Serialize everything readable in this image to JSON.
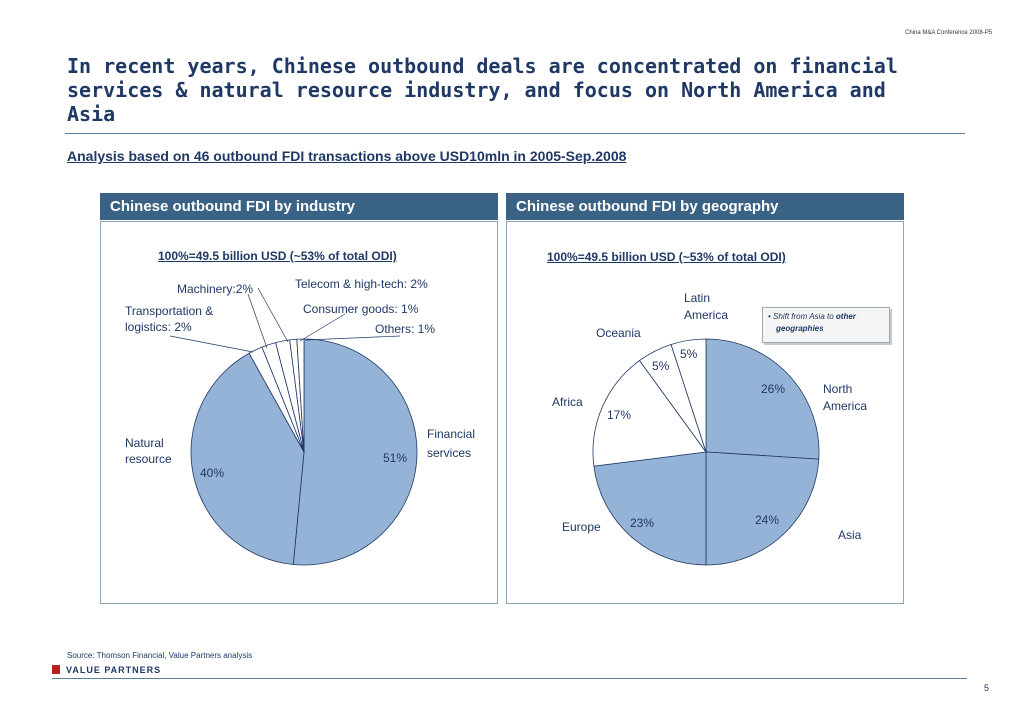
{
  "header_note": "China M&A Conference 2008-P5",
  "title": "In recent years, Chinese outbound deals are concentrated on financial services & natural resource industry, and focus on North America and Asia",
  "subtitle": "Analysis based on 46 outbound FDI transactions above USD10mln in 2005-Sep.2008",
  "panels": {
    "industry": {
      "header": "Chinese outbound FDI by industry",
      "subtitle": "100%=49.5 billion USD (~53% of total ODI)",
      "labels": {
        "machinery": "Machinery:2%",
        "telecom": "Telecom & high-tech: 2%",
        "transport_line1": "Transportation &",
        "transport_line2": "logistics: 2%",
        "consumer": "Consumer goods: 1%",
        "others": "Others: 1%",
        "natural_line1": "Natural",
        "natural_line2": "resource",
        "natural_pct": "40%",
        "financial_line1": "Financial",
        "financial_line2": "services",
        "financial_pct": "51%"
      }
    },
    "geography": {
      "header": "Chinese outbound FDI by geography",
      "subtitle": "100%=49.5 billion USD (~53% of total ODI)",
      "labels": {
        "latin_line1": "Latin",
        "latin_line2": "America",
        "latin_pct": "5%",
        "oceania": "Oceania",
        "oceania_pct": "5%",
        "africa": "Africa",
        "africa_pct": "17%",
        "north_line1": "North",
        "north_line2": "America",
        "north_pct": "26%",
        "europe": "Europe",
        "europe_pct": "23%",
        "asia": "Asia",
        "asia_pct": "24%"
      },
      "note_bullet": "•",
      "note_line1": "Shift from Asia to",
      "note_bold": "other",
      "note_line2": "geographies"
    }
  },
  "chart_data": [
    {
      "type": "pie",
      "title": "Chinese outbound FDI by industry",
      "subtitle": "100%=49.5 billion USD (~53% of total ODI)",
      "categories": [
        "Financial services",
        "Natural resource",
        "Transportation & logistics",
        "Machinery",
        "Telecom & high-tech",
        "Consumer goods",
        "Others"
      ],
      "values": [
        51,
        40,
        2,
        2,
        2,
        1,
        1
      ],
      "colors": [
        "#95b3d7",
        "#95b3d7",
        "#ffffff",
        "#ffffff",
        "#ffffff",
        "#ffffff",
        "#ffffff"
      ]
    },
    {
      "type": "pie",
      "title": "Chinese outbound FDI by geography",
      "subtitle": "100%=49.5 billion USD (~53% of total ODI)",
      "categories": [
        "North America",
        "Asia",
        "Europe",
        "Africa",
        "Oceania",
        "Latin America"
      ],
      "values": [
        26,
        24,
        23,
        17,
        5,
        5
      ],
      "colors": [
        "#95b3d7",
        "#95b3d7",
        "#95b3d7",
        "#ffffff",
        "#ffffff",
        "#ffffff"
      ]
    }
  ],
  "source": "Source: Thomson Financial, Value Partners analysis",
  "logo_text": "VALUE PARTNERS",
  "page_number": "5"
}
